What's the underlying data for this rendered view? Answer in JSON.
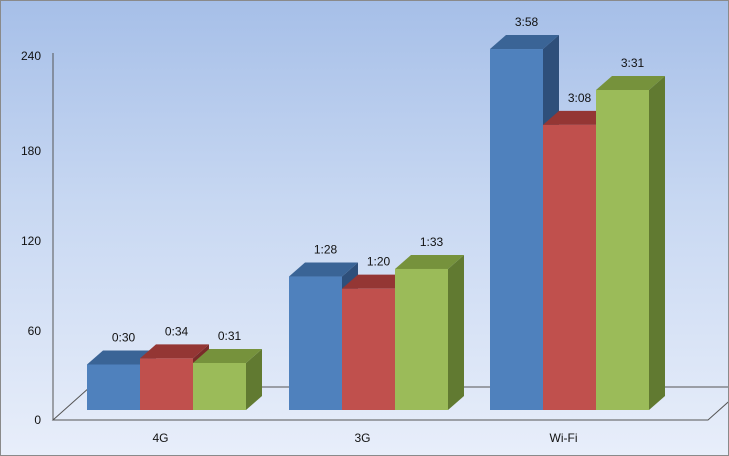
{
  "chart_data": {
    "type": "bar",
    "title": "",
    "xlabel": "",
    "ylabel": "",
    "categories": [
      "4G",
      "3G",
      "Wi-Fi"
    ],
    "series": [
      {
        "values": [
          30,
          88,
          238
        ],
        "labels": [
          "0:30",
          "1:28",
          "3:58"
        ],
        "color": "#4f81bd",
        "top_color": "#3a6496",
        "side_color": "#2e4f7a"
      },
      {
        "values": [
          34,
          80,
          188
        ],
        "labels": [
          "0:34",
          "1:20",
          "3:08"
        ],
        "color": "#c0504d",
        "top_color": "#943634",
        "side_color": "#7a2b29"
      },
      {
        "values": [
          31,
          93,
          211
        ],
        "labels": [
          "0:31",
          "1:33",
          "3:31"
        ],
        "color": "#9bbb59",
        "top_color": "#76923c",
        "side_color": "#617a31"
      }
    ],
    "y_ticks": [
      "0",
      "60",
      "120",
      "180",
      "240"
    ],
    "ylim": [
      0,
      240
    ],
    "grid": false,
    "legend": "none",
    "style": "3d-clustered-column"
  }
}
